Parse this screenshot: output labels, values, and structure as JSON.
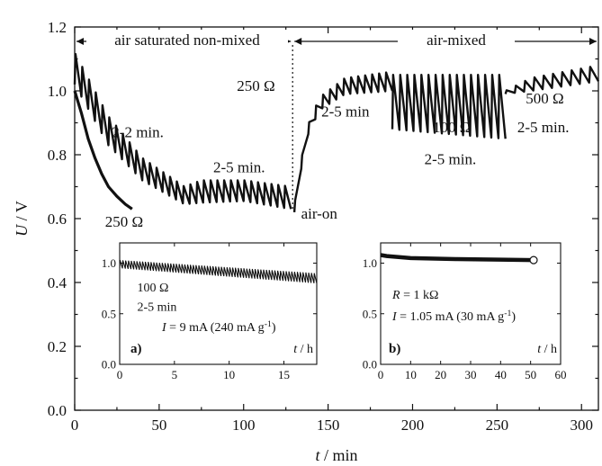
{
  "chart_data": [
    {
      "id": "main",
      "type": "line",
      "xlabel": {
        "var": "t",
        "unit": " / min"
      },
      "ylabel": {
        "var": "U",
        "unit": " / V"
      },
      "xlim": [
        0,
        310
      ],
      "ylim": [
        0.0,
        1.2
      ],
      "xticks": [
        0,
        50,
        100,
        150,
        200,
        250,
        300
      ],
      "yticks": [
        0.0,
        0.2,
        0.4,
        0.6,
        0.8,
        1.0,
        1.2
      ],
      "ytick_labels": [
        "0.0",
        "0.2",
        "0.4",
        "0.6",
        "0.8",
        "1.0",
        "1.2"
      ],
      "regions": [
        {
          "label": "air saturated non-mixed",
          "x_range": [
            0,
            129
          ]
        },
        {
          "label": "air-mixed",
          "x_range": [
            129,
            310
          ]
        }
      ],
      "air_on_time": 129,
      "series": [
        {
          "segment": "250 Ω continuous",
          "points": [
            [
              0,
              1.0
            ],
            [
              4,
              0.93
            ],
            [
              8,
              0.85
            ],
            [
              12,
              0.79
            ],
            [
              16,
              0.74
            ],
            [
              20,
              0.7
            ],
            [
              25,
              0.67
            ],
            [
              30,
              0.645
            ],
            [
              34,
              0.63
            ]
          ]
        },
        {
          "segment": "2-2 min / 2-5 min / 250 Ω pulsed (non-mixed)",
          "envelope_upper": [
            [
              0,
              1.12
            ],
            [
              20,
              0.92
            ],
            [
              40,
              0.79
            ],
            [
              65,
              0.7
            ],
            [
              75,
              0.72
            ],
            [
              100,
              0.72
            ],
            [
              128,
              0.7
            ]
          ],
          "envelope_lower": [
            [
              0,
              1.02
            ],
            [
              20,
              0.83
            ],
            [
              40,
              0.72
            ],
            [
              65,
              0.645
            ],
            [
              75,
              0.65
            ],
            [
              100,
              0.655
            ],
            [
              128,
              0.63
            ]
          ]
        },
        {
          "segment": "2-5 min, 250 Ω (air-mixed)",
          "envelope_upper": [
            [
              130,
              0.64
            ],
            [
              137,
              0.88
            ],
            [
              145,
              0.98
            ],
            [
              160,
              1.04
            ],
            [
              188,
              1.06
            ]
          ],
          "envelope_lower": [
            [
              130,
              0.62
            ],
            [
              137,
              0.85
            ],
            [
              145,
              0.94
            ],
            [
              160,
              0.99
            ],
            [
              188,
              1.0
            ]
          ]
        },
        {
          "segment": "100 Ω 2-5 min (air-mixed)",
          "envelope_upper": [
            [
              188,
              1.05
            ],
            [
              255,
              1.05
            ]
          ],
          "envelope_lower": [
            [
              188,
              0.88
            ],
            [
              255,
              0.85
            ]
          ]
        },
        {
          "segment": "500 Ω 2-5 min (air-mixed)",
          "envelope_upper": [
            [
              255,
              1.0
            ],
            [
              270,
              1.04
            ],
            [
              310,
              1.08
            ]
          ],
          "envelope_lower": [
            [
              255,
              0.99
            ],
            [
              270,
              1.0
            ],
            [
              310,
              1.03
            ]
          ]
        }
      ],
      "annotations": [
        {
          "text": "2-2 min.",
          "x": 22,
          "y": 0.855
        },
        {
          "text": "2-5 min.",
          "x": 82,
          "y": 0.745
        },
        {
          "text": "250 Ω",
          "x": 18,
          "y": 0.575
        },
        {
          "text": "250 Ω",
          "x": 96,
          "y": 1.0
        },
        {
          "text": "air-on",
          "x": 134,
          "y": 0.6
        },
        {
          "text": "2-5 min",
          "x": 146,
          "y": 0.92
        },
        {
          "text": "100 Ω",
          "x": 212,
          "y": 0.87
        },
        {
          "text": "2-5 min.",
          "x": 207,
          "y": 0.77
        },
        {
          "text": "500 Ω",
          "x": 267,
          "y": 0.96
        },
        {
          "text": "2-5 min.",
          "x": 262,
          "y": 0.87
        }
      ]
    },
    {
      "id": "inset-a",
      "type": "line",
      "panel_label": "a)",
      "xlabel": {
        "var": "t",
        "unit": " / h"
      },
      "xlim": [
        0,
        18
      ],
      "ylim": [
        0.0,
        1.2
      ],
      "xticks": [
        0,
        5,
        10,
        15
      ],
      "yticks": [
        0.0,
        0.5,
        1.0
      ],
      "ytick_labels": [
        "0.0",
        "0.5",
        "1.0"
      ],
      "series": [
        {
          "segment": "100 Ω 2-5 min pulsed",
          "envelope_upper": [
            [
              0,
              1.03
            ],
            [
              18,
              0.9
            ]
          ],
          "envelope_lower": [
            [
              0,
              0.95
            ],
            [
              18,
              0.8
            ]
          ]
        }
      ],
      "annotations": [
        {
          "text": "100 Ω",
          "x": 1.6,
          "y": 0.72
        },
        {
          "text": "2-5 min",
          "x": 1.6,
          "y": 0.53
        }
      ],
      "condition": {
        "var": "I",
        "text": " = 9 mA (240 mA g",
        "sup": "-1",
        "close": ")"
      }
    },
    {
      "id": "inset-b",
      "type": "line",
      "panel_label": "b)",
      "xlabel": {
        "var": "t",
        "unit": " / h"
      },
      "xlim": [
        0,
        60
      ],
      "ylim": [
        0.0,
        1.2
      ],
      "xticks": [
        0,
        10,
        20,
        30,
        40,
        50,
        60
      ],
      "yticks": [
        0.0,
        0.5,
        1.0
      ],
      "ytick_labels": [
        "0.0",
        "0.5",
        "1.0"
      ],
      "series": [
        {
          "segment": "R = 1 kΩ continuous",
          "points": [
            [
              0,
              1.08
            ],
            [
              2,
              1.07
            ],
            [
              10,
              1.05
            ],
            [
              25,
              1.04
            ],
            [
              40,
              1.035
            ],
            [
              51,
              1.03
            ]
          ],
          "end_marker": [
            51,
            1.03
          ]
        }
      ],
      "condition_r": {
        "var": "R",
        "text": " = 1 kΩ"
      },
      "condition": {
        "var": "I",
        "text": " = 1.05 mA (30 mA g",
        "sup": "-1",
        "close": ")"
      }
    }
  ]
}
